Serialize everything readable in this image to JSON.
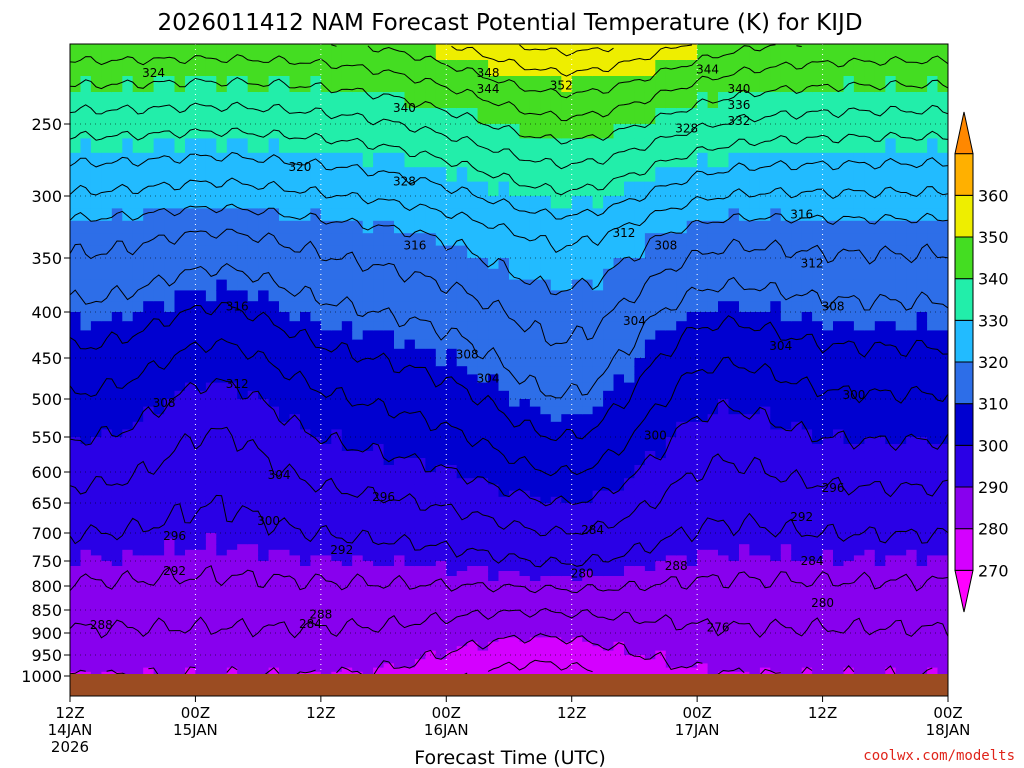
{
  "chart_data": {
    "type": "time-height contour",
    "title": "2026011412 NAM Forecast Potential Temperature (K) for KIJD",
    "xlabel": "Forecast Time (UTC)",
    "ylabel": "",
    "credit": "coolwx.com/modelts",
    "x_range_hours": [
      0,
      84
    ],
    "y_range_hpa": [
      1000,
      200
    ],
    "y_ticks": [
      250,
      300,
      350,
      400,
      450,
      500,
      550,
      600,
      650,
      700,
      750,
      800,
      850,
      900,
      950,
      1000
    ],
    "x_ticks": [
      {
        "hour": 0,
        "lines": [
          "12Z",
          "14JAN",
          "2026"
        ]
      },
      {
        "hour": 12,
        "lines": [
          "00Z",
          "15JAN"
        ]
      },
      {
        "hour": 24,
        "lines": [
          "12Z"
        ]
      },
      {
        "hour": 36,
        "lines": [
          "00Z",
          "16JAN"
        ]
      },
      {
        "hour": 48,
        "lines": [
          "12Z"
        ]
      },
      {
        "hour": 60,
        "lines": [
          "00Z",
          "17JAN"
        ]
      },
      {
        "hour": 72,
        "lines": [
          "12Z"
        ]
      },
      {
        "hour": 84,
        "lines": [
          "00Z",
          "18JAN"
        ]
      }
    ],
    "colorbar": {
      "levels": [
        270,
        280,
        290,
        300,
        310,
        320,
        330,
        340,
        350,
        360
      ],
      "colors": [
        "#ff00ff",
        "#d400ff",
        "#8800ee",
        "#2a00e6",
        "#0000d0",
        "#2d6ee8",
        "#22bbff",
        "#22eeaa",
        "#44dd22",
        "#eeee00",
        "#ffb000",
        "#ff8800"
      ]
    },
    "contour_labels": [
      {
        "text": "324",
        "hour": 8,
        "hpa": 218
      },
      {
        "text": "320",
        "hour": 22,
        "hpa": 280
      },
      {
        "text": "348",
        "hour": 40,
        "hpa": 218
      },
      {
        "text": "344",
        "hour": 40,
        "hpa": 228
      },
      {
        "text": "352",
        "hour": 47,
        "hpa": 226
      },
      {
        "text": "340",
        "hour": 32,
        "hpa": 240
      },
      {
        "text": "344",
        "hour": 61,
        "hpa": 216
      },
      {
        "text": "340",
        "hour": 64,
        "hpa": 228
      },
      {
        "text": "336",
        "hour": 64,
        "hpa": 238
      },
      {
        "text": "332",
        "hour": 64,
        "hpa": 248
      },
      {
        "text": "328",
        "hour": 59,
        "hpa": 253
      },
      {
        "text": "328",
        "hour": 32,
        "hpa": 290
      },
      {
        "text": "316",
        "hour": 33,
        "hpa": 340
      },
      {
        "text": "312",
        "hour": 53,
        "hpa": 330
      },
      {
        "text": "308",
        "hour": 57,
        "hpa": 340
      },
      {
        "text": "316",
        "hour": 70,
        "hpa": 315
      },
      {
        "text": "312",
        "hour": 71,
        "hpa": 355
      },
      {
        "text": "308",
        "hour": 73,
        "hpa": 395
      },
      {
        "text": "316",
        "hour": 16,
        "hpa": 395
      },
      {
        "text": "304",
        "hour": 54,
        "hpa": 410
      },
      {
        "text": "304",
        "hour": 68,
        "hpa": 437
      },
      {
        "text": "308",
        "hour": 38,
        "hpa": 446
      },
      {
        "text": "304",
        "hour": 40,
        "hpa": 475
      },
      {
        "text": "312",
        "hour": 16,
        "hpa": 482
      },
      {
        "text": "308",
        "hour": 9,
        "hpa": 505
      },
      {
        "text": "300",
        "hour": 56,
        "hpa": 548
      },
      {
        "text": "300",
        "hour": 75,
        "hpa": 495
      },
      {
        "text": "304",
        "hour": 20,
        "hpa": 605
      },
      {
        "text": "296",
        "hour": 30,
        "hpa": 640
      },
      {
        "text": "296",
        "hour": 73,
        "hpa": 626
      },
      {
        "text": "300",
        "hour": 19,
        "hpa": 680
      },
      {
        "text": "296",
        "hour": 10,
        "hpa": 705
      },
      {
        "text": "292",
        "hour": 70,
        "hpa": 673
      },
      {
        "text": "284",
        "hour": 50,
        "hpa": 695
      },
      {
        "text": "292",
        "hour": 26,
        "hpa": 730
      },
      {
        "text": "292",
        "hour": 10,
        "hpa": 770
      },
      {
        "text": "288",
        "hour": 58,
        "hpa": 760
      },
      {
        "text": "284",
        "hour": 71,
        "hpa": 750
      },
      {
        "text": "280",
        "hour": 49,
        "hpa": 775
      },
      {
        "text": "280",
        "hour": 72,
        "hpa": 835
      },
      {
        "text": "288",
        "hour": 24,
        "hpa": 860
      },
      {
        "text": "284",
        "hour": 23,
        "hpa": 880
      },
      {
        "text": "276",
        "hour": 62,
        "hpa": 888
      },
      {
        "text": "288",
        "hour": 3,
        "hpa": 883
      }
    ]
  }
}
